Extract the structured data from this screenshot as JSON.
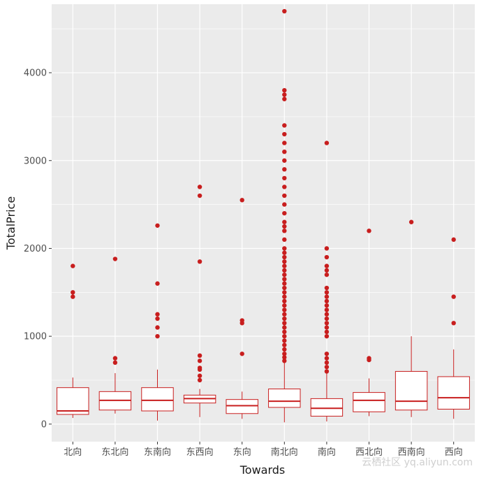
{
  "chart_data": {
    "type": "boxplot",
    "xlabel": "Towards",
    "ylabel": "TotalPrice",
    "ylim": [
      -200,
      4780
    ],
    "y_ticks": [
      0,
      1000,
      2000,
      3000,
      4000
    ],
    "grid": true,
    "colors": {
      "panel": "#ebebeb",
      "grid": "#ffffff",
      "stroke": "#c81e1e",
      "box_fill": "#ffffff",
      "outlier": "#c81e1e"
    },
    "categories": [
      "北向",
      "东北向",
      "东南向",
      "东西向",
      "东向",
      "南北向",
      "南向",
      "西北向",
      "西南向",
      "西向"
    ],
    "boxes": [
      {
        "q1": 110,
        "median": 150,
        "q3": 415,
        "whisker_low": 70,
        "whisker_high": 530,
        "outliers": [
          1450,
          1500,
          1800
        ]
      },
      {
        "q1": 160,
        "median": 270,
        "q3": 370,
        "whisker_low": 120,
        "whisker_high": 580,
        "outliers": [
          700,
          750,
          1880
        ]
      },
      {
        "q1": 150,
        "median": 270,
        "q3": 415,
        "whisker_low": 40,
        "whisker_high": 620,
        "outliers": [
          1000,
          1100,
          1200,
          1250,
          1600,
          2260
        ]
      },
      {
        "q1": 240,
        "median": 290,
        "q3": 330,
        "whisker_low": 80,
        "whisker_high": 400,
        "outliers": [
          500,
          550,
          620,
          640,
          720,
          780,
          1850,
          2600,
          2700
        ]
      },
      {
        "q1": 120,
        "median": 210,
        "q3": 280,
        "whisker_low": 60,
        "whisker_high": 370,
        "outliers": [
          800,
          1150,
          1180,
          2550
        ]
      },
      {
        "q1": 190,
        "median": 260,
        "q3": 400,
        "whisker_low": 20,
        "whisker_high": 700,
        "outliers": [
          720,
          760,
          800,
          850,
          900,
          950,
          1000,
          1050,
          1100,
          1150,
          1200,
          1250,
          1300,
          1350,
          1400,
          1450,
          1500,
          1550,
          1600,
          1650,
          1700,
          1750,
          1800,
          1850,
          1900,
          1950,
          2000,
          2100,
          2200,
          2250,
          2300,
          2400,
          2500,
          2600,
          2700,
          2800,
          2900,
          3000,
          3100,
          3200,
          3300,
          3400,
          3700,
          3750,
          3800,
          4700
        ]
      },
      {
        "q1": 90,
        "median": 180,
        "q3": 290,
        "whisker_low": 30,
        "whisker_high": 580,
        "outliers": [
          600,
          650,
          700,
          750,
          800,
          1000,
          1050,
          1100,
          1150,
          1200,
          1250,
          1300,
          1350,
          1400,
          1450,
          1500,
          1550,
          1700,
          1750,
          1800,
          1900,
          2000,
          3200
        ]
      },
      {
        "q1": 140,
        "median": 270,
        "q3": 360,
        "whisker_low": 90,
        "whisker_high": 520,
        "outliers": [
          730,
          750,
          2200
        ]
      },
      {
        "q1": 160,
        "median": 260,
        "q3": 600,
        "whisker_low": 80,
        "whisker_high": 1000,
        "outliers": [
          2300
        ]
      },
      {
        "q1": 170,
        "median": 300,
        "q3": 540,
        "whisker_low": 60,
        "whisker_high": 850,
        "outliers": [
          1150,
          1450,
          2100
        ]
      }
    ]
  },
  "watermark": "云栖社区 yq.aliyun.com"
}
